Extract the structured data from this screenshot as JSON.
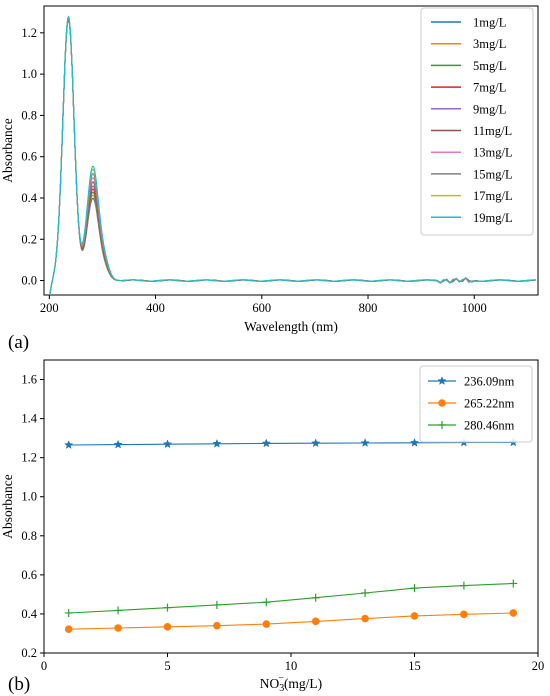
{
  "chart_data": [
    {
      "type": "line",
      "panel_label": "(a)",
      "xlabel": "Wavelength (nm)",
      "ylabel": "Absorbance",
      "xlim": [
        190,
        1120
      ],
      "ylim": [
        -0.07,
        1.33
      ],
      "x_ticks": [
        200,
        400,
        600,
        800,
        1000
      ],
      "y_ticks": [
        0.0,
        0.2,
        0.4,
        0.6,
        0.8,
        1.0,
        1.2
      ],
      "y_tick_labels": [
        "0.0",
        "0.2",
        "0.4",
        "0.6",
        "0.8",
        "1.0",
        "1.2"
      ],
      "grid": false,
      "legend_position": "top-right",
      "series": [
        {
          "name": "1mg/L",
          "color": "#1f77b4",
          "peak_236": 1.265,
          "peak_282": 0.405
        },
        {
          "name": "3mg/L",
          "color": "#ff7f0e",
          "peak_236": 1.266,
          "peak_282": 0.42
        },
        {
          "name": "5mg/L",
          "color": "#2ca02c",
          "peak_236": 1.268,
          "peak_282": 0.435
        },
        {
          "name": "7mg/L",
          "color": "#d62728",
          "peak_236": 1.27,
          "peak_282": 0.45
        },
        {
          "name": "9mg/L",
          "color": "#9467bd",
          "peak_236": 1.272,
          "peak_282": 0.465
        },
        {
          "name": "11mg/L",
          "color": "#8c564b",
          "peak_236": 1.274,
          "peak_282": 0.485
        },
        {
          "name": "13mg/L",
          "color": "#e377c2",
          "peak_236": 1.275,
          "peak_282": 0.505
        },
        {
          "name": "15mg/L",
          "color": "#7f7f7f",
          "peak_236": 1.276,
          "peak_282": 0.525
        },
        {
          "name": "17mg/L",
          "color": "#bcbd22",
          "peak_236": 1.277,
          "peak_282": 0.545
        },
        {
          "name": "19mg/L",
          "color": "#17becf",
          "peak_236": 1.278,
          "peak_282": 0.56
        }
      ]
    },
    {
      "type": "line",
      "panel_label": "(b)",
      "xlabel": "NO3-(mg/L)",
      "xlabel_parts": {
        "base": "NO",
        "sub": "3",
        "sup": "−",
        "rest": "(mg/L)"
      },
      "ylabel": "Absorbance",
      "xlim": [
        0,
        20
      ],
      "ylim": [
        0.2,
        1.7
      ],
      "x_ticks": [
        0,
        5,
        10,
        15,
        20
      ],
      "y_ticks": [
        0.2,
        0.4,
        0.6,
        0.8,
        1.0,
        1.2,
        1.4,
        1.6
      ],
      "y_tick_labels": [
        "0.2",
        "0.4",
        "0.6",
        "0.8",
        "1.0",
        "1.2",
        "1.4",
        "1.6"
      ],
      "grid": false,
      "legend_position": "top-right",
      "x": [
        1,
        3,
        5,
        7,
        9,
        11,
        13,
        15,
        17,
        19
      ],
      "series": [
        {
          "name": "236.09nm",
          "color": "#1f77b4",
          "marker": "star",
          "values": [
            1.265,
            1.267,
            1.269,
            1.271,
            1.273,
            1.274,
            1.275,
            1.276,
            1.277,
            1.278
          ]
        },
        {
          "name": "265.22nm",
          "color": "#ff7f0e",
          "marker": "circle",
          "values": [
            0.322,
            0.328,
            0.334,
            0.34,
            0.348,
            0.362,
            0.376,
            0.39,
            0.398,
            0.405
          ]
        },
        {
          "name": "280.46nm",
          "color": "#2ca02c",
          "marker": "plus",
          "values": [
            0.405,
            0.418,
            0.432,
            0.446,
            0.46,
            0.483,
            0.507,
            0.532,
            0.545,
            0.556
          ]
        }
      ]
    }
  ]
}
